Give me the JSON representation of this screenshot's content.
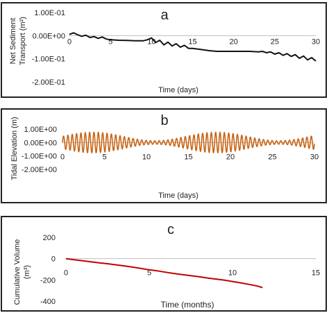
{
  "chart_data": [
    {
      "type": "line",
      "panel_label": "a",
      "title": "",
      "xlabel": "Time (days)",
      "ylabel_lines": [
        "Net Sediment",
        "Transport (m²)"
      ],
      "xlim": [
        0,
        30
      ],
      "ylim": [
        -0.2,
        0.1
      ],
      "xticks": [
        0,
        5,
        10,
        15,
        20,
        25,
        30
      ],
      "yticks": [
        0.1,
        0.0,
        -0.1,
        -0.2
      ],
      "ytick_labels": [
        "1.00E-01",
        "0.00E+00",
        "-1.00E-01",
        "-2.00E-01"
      ],
      "grid": false,
      "legend": "none",
      "series": [
        {
          "color": "#111111",
          "x": [
            0,
            0.5,
            1,
            1.5,
            2,
            2.5,
            3,
            3.5,
            4,
            4.5,
            5,
            6,
            7,
            8,
            9,
            9.5,
            10,
            10.5,
            11,
            11.5,
            12,
            12.5,
            13,
            13.5,
            14,
            14.5,
            15,
            16,
            17,
            18,
            19,
            20,
            21,
            22,
            23,
            23.5,
            24,
            24.5,
            25,
            25.5,
            26,
            26.5,
            27,
            27.5,
            28,
            28.5,
            29,
            29.5,
            30
          ],
          "y": [
            0.005,
            0.012,
            0.004,
            -0.003,
            0.002,
            -0.008,
            -0.004,
            -0.012,
            -0.006,
            -0.015,
            -0.018,
            -0.02,
            -0.021,
            -0.022,
            -0.022,
            -0.018,
            -0.01,
            -0.03,
            -0.02,
            -0.04,
            -0.028,
            -0.045,
            -0.035,
            -0.05,
            -0.042,
            -0.055,
            -0.055,
            -0.06,
            -0.065,
            -0.068,
            -0.068,
            -0.068,
            -0.068,
            -0.068,
            -0.07,
            -0.068,
            -0.074,
            -0.07,
            -0.08,
            -0.074,
            -0.085,
            -0.078,
            -0.09,
            -0.082,
            -0.098,
            -0.088,
            -0.105,
            -0.095,
            -0.11
          ]
        }
      ]
    },
    {
      "type": "line",
      "panel_label": "b",
      "title": "",
      "xlabel": "Time (days)",
      "ylabel_lines": [
        "Tidal Elevation (m)"
      ],
      "xlim": [
        0,
        30
      ],
      "ylim": [
        -2.0,
        1.0
      ],
      "xticks": [
        0,
        5,
        10,
        15,
        20,
        25,
        30
      ],
      "yticks": [
        1.0,
        0.0,
        -1.0,
        -2.0
      ],
      "ytick_labels": [
        "1.00E+00",
        "0.00E+00",
        "-1.00E+00",
        "-2.00E+00"
      ],
      "grid": false,
      "legend": "none",
      "series": [
        {
          "color": "#c86414",
          "form": "semi-diurnal tide with spring-neap modulation",
          "period_days": 0.5175,
          "mean_amplitude": 0.45,
          "modulation_amplitude": 0.32,
          "modulation_period_days": 14.77
        }
      ]
    },
    {
      "type": "line",
      "panel_label": "c",
      "title": "",
      "xlabel": "Time (months)",
      "ylabel_lines": [
        "Cumulative Volume",
        "(m³)"
      ],
      "xlim": [
        0,
        15
      ],
      "ylim": [
        -400,
        200
      ],
      "xticks": [
        0,
        5,
        10,
        15
      ],
      "yticks": [
        200,
        0,
        -200,
        -400
      ],
      "ytick_labels": [
        "200",
        "0",
        "-200",
        "-400"
      ],
      "grid": false,
      "legend": "none",
      "series": [
        {
          "color": "#c00000",
          "x": [
            0,
            0.5,
            1,
            1.5,
            2,
            2.5,
            3,
            3.5,
            4,
            4.5,
            5,
            5.5,
            6,
            6.5,
            7,
            7.5,
            8,
            8.5,
            9,
            9.5,
            10,
            10.5,
            11,
            11.5,
            11.8
          ],
          "y": [
            0,
            -10,
            -20,
            -30,
            -40,
            -48,
            -58,
            -68,
            -80,
            -92,
            -105,
            -115,
            -128,
            -140,
            -150,
            -160,
            -170,
            -182,
            -192,
            -202,
            -215,
            -228,
            -242,
            -258,
            -272
          ]
        }
      ]
    }
  ]
}
